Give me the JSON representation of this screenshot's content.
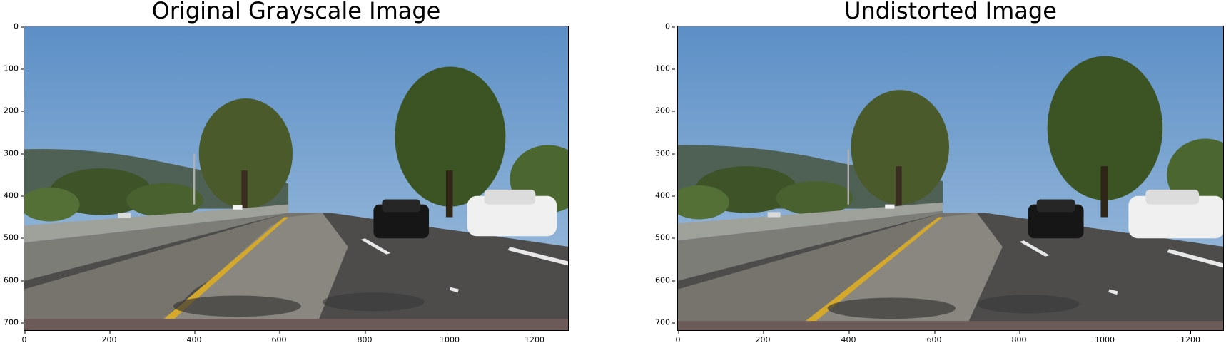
{
  "figure": {
    "left": {
      "title": "Original Grayscale Image",
      "yticks": [
        "0",
        "100",
        "200",
        "300",
        "400",
        "500",
        "600",
        "700"
      ],
      "xticks": [
        "0",
        "200",
        "400",
        "600",
        "800",
        "1000",
        "1200"
      ]
    },
    "right": {
      "title": "Undistorted Image",
      "yticks": [
        "0",
        "100",
        "200",
        "300",
        "400",
        "500",
        "600",
        "700"
      ],
      "xticks": [
        "0",
        "200",
        "400",
        "600",
        "800",
        "1000",
        "1200"
      ]
    },
    "image_extent": {
      "xmax": 1280,
      "ymax": 720
    }
  }
}
